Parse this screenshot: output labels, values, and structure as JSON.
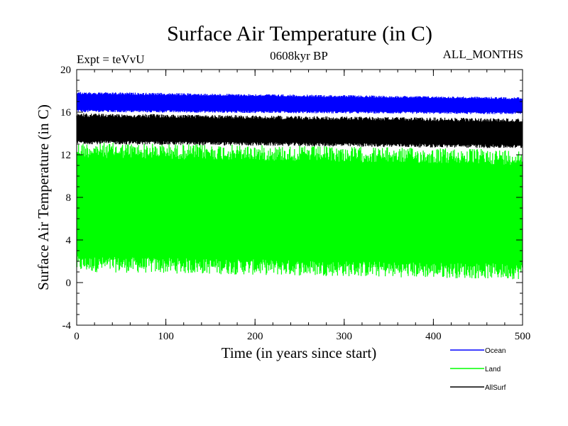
{
  "chart_data": {
    "type": "line",
    "title": "Surface Air Temperature (in C)",
    "subtitle_left": "Expt = teVvU",
    "subtitle_center": "0608kyr BP",
    "subtitle_right": "ALL_MONTHS",
    "xlabel": "Time (in years since start)",
    "ylabel": "Surface Air Temperature (in C)",
    "xlim": [
      0,
      500
    ],
    "ylim": [
      -4,
      20
    ],
    "xticks": [
      0,
      100,
      200,
      300,
      400,
      500
    ],
    "yticks": [
      -4,
      0,
      4,
      8,
      12,
      16,
      20
    ],
    "x_minor_step": 20,
    "y_minor_step": 1,
    "grid": false,
    "legend_position": "bottom-right",
    "series": [
      {
        "name": "Ocean",
        "color": "#0000ff",
        "min_start": 16.0,
        "min_end": 15.8,
        "max_start": 17.9,
        "max_end": 17.4
      },
      {
        "name": "Land",
        "color": "#00ff00",
        "min_start": 1.0,
        "min_end": 0.3,
        "max_start": 13.2,
        "max_end": 12.5
      },
      {
        "name": "AllSurf",
        "color": "#000000",
        "min_start": 13.0,
        "min_end": 12.6,
        "max_start": 15.9,
        "max_end": 15.4
      }
    ]
  }
}
